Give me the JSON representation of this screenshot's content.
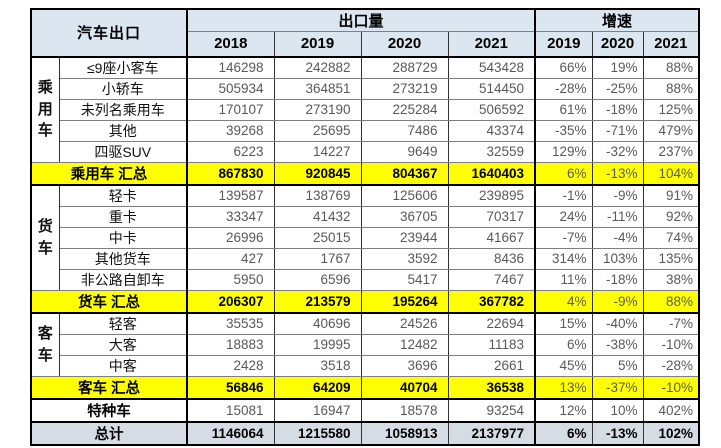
{
  "colors": {
    "header_bg": "#dce6f1",
    "summary_bg": "#ffff00",
    "total_bg": "#d6dce4",
    "value_text": "#595959",
    "label_text": "#111111"
  },
  "header": {
    "title": "汽车出口",
    "export_label": "出口量",
    "growth_label": "增速",
    "export_years": [
      "2018",
      "2019",
      "2020",
      "2021"
    ],
    "growth_years": [
      "2019",
      "2020",
      "2021"
    ]
  },
  "groups": [
    {
      "name": "乘用车",
      "rows": [
        {
          "label": "≤9座小客车",
          "exports": [
            "146298",
            "242882",
            "288729",
            "543428"
          ],
          "growth": [
            "66%",
            "19%",
            "88%"
          ]
        },
        {
          "label": "小轿车",
          "exports": [
            "505934",
            "364851",
            "273219",
            "514450"
          ],
          "growth": [
            "-28%",
            "-25%",
            "88%"
          ]
        },
        {
          "label": "未列名乘用车",
          "exports": [
            "170107",
            "273190",
            "225284",
            "506592"
          ],
          "growth": [
            "61%",
            "-18%",
            "125%"
          ]
        },
        {
          "label": "其他",
          "exports": [
            "39268",
            "25695",
            "7486",
            "43374"
          ],
          "growth": [
            "-35%",
            "-71%",
            "479%"
          ]
        },
        {
          "label": "四驱SUV",
          "exports": [
            "6223",
            "14227",
            "9649",
            "32559"
          ],
          "growth": [
            "129%",
            "-32%",
            "237%"
          ]
        }
      ],
      "summary": {
        "label": "乘用车 汇总",
        "exports": [
          "867830",
          "920845",
          "804367",
          "1640403"
        ],
        "growth": [
          "6%",
          "-13%",
          "104%"
        ]
      }
    },
    {
      "name": "货车",
      "rows": [
        {
          "label": "轻卡",
          "exports": [
            "139587",
            "138769",
            "125606",
            "239895"
          ],
          "growth": [
            "-1%",
            "-9%",
            "91%"
          ]
        },
        {
          "label": "重卡",
          "exports": [
            "33347",
            "41432",
            "36705",
            "70317"
          ],
          "growth": [
            "24%",
            "-11%",
            "92%"
          ]
        },
        {
          "label": "中卡",
          "exports": [
            "26996",
            "25015",
            "23944",
            "41667"
          ],
          "growth": [
            "-7%",
            "-4%",
            "74%"
          ]
        },
        {
          "label": "其他货车",
          "exports": [
            "427",
            "1767",
            "3592",
            "8436"
          ],
          "growth": [
            "314%",
            "103%",
            "135%"
          ]
        },
        {
          "label": "非公路自卸车",
          "exports": [
            "5950",
            "6596",
            "5417",
            "7467"
          ],
          "growth": [
            "11%",
            "-18%",
            "38%"
          ]
        }
      ],
      "summary": {
        "label": "货车 汇总",
        "exports": [
          "206307",
          "213579",
          "195264",
          "367782"
        ],
        "growth": [
          "4%",
          "-9%",
          "88%"
        ]
      }
    },
    {
      "name": "客车",
      "rows": [
        {
          "label": "轻客",
          "exports": [
            "35535",
            "40696",
            "24526",
            "22694"
          ],
          "growth": [
            "15%",
            "-40%",
            "-7%"
          ]
        },
        {
          "label": "大客",
          "exports": [
            "18883",
            "19995",
            "12482",
            "11183"
          ],
          "growth": [
            "6%",
            "-38%",
            "-10%"
          ]
        },
        {
          "label": "中客",
          "exports": [
            "2428",
            "3518",
            "3696",
            "2661"
          ],
          "growth": [
            "45%",
            "5%",
            "-28%"
          ]
        }
      ],
      "summary": {
        "label": "客车 汇总",
        "exports": [
          "56846",
          "64209",
          "40704",
          "36538"
        ],
        "growth": [
          "13%",
          "-37%",
          "-10%"
        ]
      }
    }
  ],
  "special_row": {
    "label": "特种车",
    "exports": [
      "15081",
      "16947",
      "18578",
      "93254"
    ],
    "growth": [
      "12%",
      "10%",
      "402%"
    ]
  },
  "total_row": {
    "label": "总计",
    "exports": [
      "1146064",
      "1215580",
      "1058913",
      "2137977"
    ],
    "growth": [
      "6%",
      "-13%",
      "102%"
    ]
  }
}
